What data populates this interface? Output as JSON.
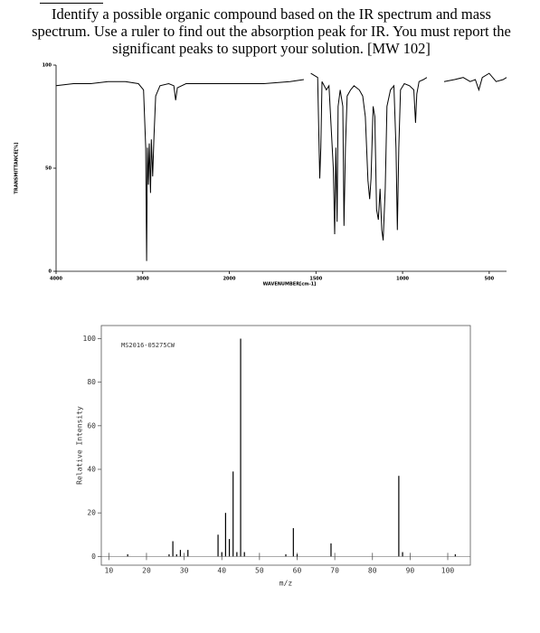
{
  "question": "Identify a possible organic compound based on the IR spectrum and mass spectrum. Use a ruler to find out the absorption peak for IR. You must report the significant peaks to support your solution. [MW 102]",
  "chart_data": [
    {
      "type": "line",
      "xlabel": "WAVENUMBER[cm-1]",
      "ylabel": "TRANSMITTANCE[%]",
      "color": "#000000",
      "x": [
        4000,
        3800,
        3600,
        3400,
        3200,
        3050,
        2990,
        2965,
        2955,
        2945,
        2935,
        2925,
        2910,
        2900,
        2885,
        2870,
        2850,
        2800,
        2700,
        2640,
        2620,
        2600,
        2500,
        2300,
        2100,
        2000,
        1800,
        1650,
        1570,
        null,
        1530,
        1490,
        1478,
        1472,
        1465,
        1440,
        1425,
        1400,
        1392,
        1385,
        1378,
        1372,
        1360,
        1345,
        1338,
        1330,
        1320,
        1300,
        1280,
        1250,
        1230,
        1215,
        1200,
        1190,
        1182,
        1170,
        1160,
        1150,
        1140,
        1130,
        1120,
        1112,
        1100,
        1090,
        1070,
        1050,
        1038,
        1030,
        1022,
        1012,
        990,
        960,
        935,
        925,
        918,
        905,
        880,
        860,
        null,
        760,
        700,
        650,
        610,
        580,
        560,
        540,
        500,
        460,
        420,
        400
      ],
      "values": [
        90,
        91,
        91,
        92,
        92,
        91,
        88,
        60,
        5,
        60,
        42,
        62,
        38,
        64,
        46,
        65,
        85,
        90,
        91,
        90,
        83,
        89,
        91,
        91,
        91,
        91,
        91,
        92,
        93,
        null,
        96,
        94,
        45,
        60,
        92,
        88,
        90,
        50,
        18,
        60,
        24,
        80,
        88,
        80,
        22,
        60,
        85,
        88,
        90,
        88,
        85,
        75,
        44,
        35,
        45,
        80,
        75,
        30,
        25,
        40,
        20,
        15,
        40,
        80,
        88,
        90,
        60,
        20,
        60,
        88,
        91,
        90,
        88,
        72,
        86,
        92,
        93,
        94,
        null,
        92,
        93,
        94,
        92,
        93,
        88,
        94,
        96,
        92,
        93,
        94
      ],
      "xlim": [
        4000,
        400
      ],
      "ylim": [
        0,
        100
      ],
      "xticks": [
        4000,
        3000,
        2000,
        1500,
        1000,
        500
      ],
      "yticks": [
        0,
        50,
        100
      ]
    },
    {
      "type": "bar",
      "annotation": "MS2016-05275CW",
      "xlabel": "m/z",
      "ylabel": "Relative Intensity",
      "color": "#000000",
      "x": [
        15,
        26,
        27,
        28,
        29,
        31,
        39,
        40,
        41,
        42,
        43,
        44,
        45,
        46,
        57,
        59,
        60,
        69,
        87,
        88,
        102
      ],
      "values": [
        1,
        1,
        7,
        1,
        3,
        3,
        10,
        2,
        20,
        8,
        39,
        2,
        100,
        2,
        1,
        13,
        1,
        6,
        37,
        2,
        1
      ],
      "xlim": [
        8,
        106
      ],
      "ylim": [
        -4,
        106
      ],
      "xticks": [
        10,
        20,
        30,
        40,
        50,
        60,
        70,
        80,
        90,
        100
      ],
      "yticks": [
        0,
        20,
        40,
        60,
        80,
        100
      ]
    }
  ]
}
